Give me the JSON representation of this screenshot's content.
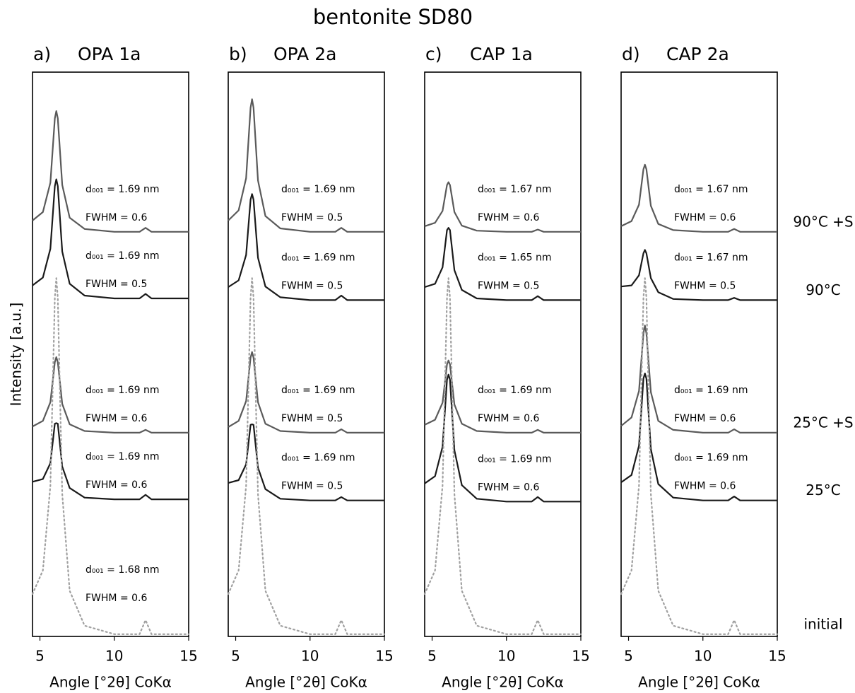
{
  "title": "bentonite SD80",
  "chart_data": [
    {
      "type": "line",
      "label": "a)",
      "title": "OPA 1a",
      "xlabel": "Angle [°2θ] CoKα",
      "ylabel": "Intensity [a.u.]",
      "x": [
        4.5,
        5.2,
        5.7,
        6.0,
        6.1,
        6.2,
        6.5,
        7.0,
        8.0,
        10,
        11.7,
        12.1,
        12.5,
        15
      ],
      "xlim": [
        4.5,
        15
      ],
      "xticks": [
        5,
        10,
        15
      ],
      "ylim": [
        0,
        100
      ],
      "series": [
        {
          "color": "#5a5a5a",
          "labels": [
            "d₀₀₁ = 1.69 nm",
            "FWHM = 0.6"
          ],
          "values": [
            73.7,
            75.2,
            80.4,
            91.8,
            93.1,
            91.8,
            80.0,
            74.2,
            72.2,
            71.7,
            71.7,
            72.4,
            71.7,
            71.7
          ]
        },
        {
          "color": "#1a1a1a",
          "labels": [
            "d₀₀₁ = 1.69 nm",
            "FWHM = 0.5"
          ],
          "values": [
            62.2,
            63.6,
            68.7,
            79.8,
            81.0,
            79.8,
            68.2,
            62.5,
            60.4,
            59.9,
            59.9,
            60.7,
            59.9,
            59.9
          ]
        },
        {
          "color": "#5a5a5a",
          "labels": [
            "d₀₀₁ = 1.69 nm",
            "FWHM = 0.6"
          ],
          "values": [
            37.2,
            38.2,
            41.5,
            48.6,
            49.5,
            48.6,
            41.2,
            37.6,
            36.4,
            36.1,
            36.1,
            36.6,
            36.1,
            36.1
          ]
        },
        {
          "color": "#1a1a1a",
          "labels": [
            "d₀₀₁ = 1.69 nm",
            "FWHM = 0.6"
          ],
          "values": [
            27.4,
            27.9,
            30.7,
            37.7,
            37.8,
            37.7,
            30.1,
            26.3,
            24.6,
            24.3,
            24.3,
            25.1,
            24.3,
            24.3
          ]
        },
        {
          "color": "#a0a0a0",
          "linestyle": "dotted",
          "labels": [
            "d₀₀₁ = 1.68 nm",
            "FWHM = 0.6"
          ],
          "values": [
            7.5,
            11.7,
            26.7,
            60.0,
            63.5,
            60.0,
            25.2,
            8.1,
            1.9,
            0.4,
            0.4,
            2.9,
            0.4,
            0.4
          ]
        }
      ]
    },
    {
      "type": "line",
      "label": "b)",
      "title": "OPA 2a",
      "xlabel": "Angle [°2θ] CoKα",
      "x": [
        4.5,
        5.2,
        5.7,
        6.0,
        6.1,
        6.2,
        6.5,
        7.0,
        8.0,
        10,
        11.7,
        12.1,
        12.5,
        15
      ],
      "xlim": [
        4.5,
        15
      ],
      "xticks": [
        5,
        10,
        15
      ],
      "ylim": [
        0,
        100
      ],
      "series": [
        {
          "color": "#5a5a5a",
          "labels": [
            "d₀₀₁ = 1.69 nm",
            "FWHM = 0.5"
          ],
          "values": [
            73.7,
            75.5,
            81.2,
            93.7,
            95.2,
            93.7,
            80.8,
            74.5,
            72.3,
            71.7,
            71.7,
            72.4,
            71.7,
            71.7
          ]
        },
        {
          "color": "#1a1a1a",
          "labels": [
            "d₀₀₁ = 1.69 nm",
            "FWHM = 0.5"
          ],
          "values": [
            61.9,
            63.1,
            67.6,
            77.4,
            78.4,
            77.4,
            67.1,
            62.0,
            60.1,
            59.6,
            59.6,
            60.4,
            59.6,
            59.6
          ]
        },
        {
          "color": "#5a5a5a",
          "labels": [
            "d₀₀₁ = 1.69 nm",
            "FWHM = 0.5"
          ],
          "values": [
            37.1,
            38.2,
            41.7,
            49.4,
            50.4,
            49.4,
            41.5,
            37.7,
            36.4,
            36.1,
            36.1,
            36.7,
            36.1,
            36.1
          ]
        },
        {
          "color": "#1a1a1a",
          "labels": [
            "d₀₀₁ = 1.69 nm",
            "FWHM = 0.5"
          ],
          "values": [
            27.2,
            27.7,
            30.5,
            37.5,
            37.6,
            37.5,
            29.9,
            26.1,
            24.4,
            24.1,
            24.1,
            24.7,
            24.1,
            24.1
          ]
        },
        {
          "color": "#a0a0a0",
          "linestyle": "dotted",
          "values": [
            7.5,
            11.7,
            26.7,
            60.0,
            63.5,
            60.0,
            25.2,
            8.1,
            1.9,
            0.4,
            0.4,
            2.9,
            0.4,
            0.4
          ]
        }
      ]
    },
    {
      "type": "line",
      "label": "c)",
      "title": "CAP 1a",
      "xlabel": "Angle [°2θ] CoKα",
      "x": [
        4.5,
        5.2,
        5.7,
        6.0,
        6.1,
        6.2,
        6.5,
        7.0,
        8.0,
        10,
        11.7,
        12.1,
        12.5,
        15
      ],
      "xlim": [
        4.5,
        15
      ],
      "xticks": [
        5,
        10,
        15
      ],
      "ylim": [
        0,
        100
      ],
      "series": [
        {
          "color": "#5a5a5a",
          "labels": [
            "d₀₀₁ = 1.67 nm",
            "FWHM = 0.6"
          ],
          "values": [
            72.7,
            73.3,
            75.4,
            80.0,
            80.5,
            80.0,
            75.2,
            72.8,
            71.9,
            71.7,
            71.7,
            72.1,
            71.7,
            71.7
          ]
        },
        {
          "color": "#1a1a1a",
          "labels": [
            "d₀₀₁ = 1.65 nm",
            "FWHM = 0.5"
          ],
          "values": [
            61.9,
            62.5,
            65.4,
            72.0,
            72.4,
            72.0,
            64.9,
            61.4,
            59.9,
            59.6,
            59.6,
            60.3,
            59.6,
            59.6
          ]
        },
        {
          "color": "#5a5a5a",
          "labels": [
            "d₀₀₁ = 1.69 nm",
            "FWHM = 0.6"
          ],
          "values": [
            37.5,
            38.4,
            41.4,
            48.2,
            48.9,
            48.2,
            41.1,
            37.7,
            36.4,
            36.1,
            36.1,
            36.6,
            36.1,
            36.1
          ]
        },
        {
          "color": "#1a1a1a",
          "labels": [
            "d₀₀₁ = 1.69 nm",
            "FWHM = 0.6"
          ],
          "values": [
            27.1,
            28.4,
            33.6,
            45.5,
            46.4,
            45.5,
            33.0,
            26.8,
            24.4,
            23.9,
            23.9,
            24.7,
            23.9,
            23.9
          ]
        },
        {
          "color": "#a0a0a0",
          "linestyle": "dotted",
          "values": [
            7.5,
            11.7,
            26.7,
            60.0,
            63.5,
            60.0,
            25.2,
            8.1,
            1.9,
            0.4,
            0.4,
            2.9,
            0.4,
            0.4
          ]
        }
      ]
    },
    {
      "type": "line",
      "label": "d)",
      "title": "CAP 2a",
      "xlabel": "Angle [°2θ] CoKα",
      "x": [
        4.5,
        5.2,
        5.7,
        6.0,
        6.1,
        6.2,
        6.5,
        7.0,
        8.0,
        10,
        11.7,
        12.1,
        12.5,
        15
      ],
      "xlim": [
        4.5,
        15
      ],
      "xticks": [
        5,
        10,
        15
      ],
      "ylim": [
        0,
        100
      ],
      "series": [
        {
          "name": "90°C +S",
          "color": "#5a5a5a",
          "labels": [
            "d₀₀₁ = 1.67 nm",
            "FWHM = 0.6"
          ],
          "values": [
            72.7,
            73.6,
            76.5,
            82.8,
            83.6,
            82.8,
            76.3,
            73.1,
            72.0,
            71.7,
            71.7,
            72.2,
            71.7,
            71.7
          ]
        },
        {
          "name": "90°C",
          "color": "#1a1a1a",
          "labels": [
            "d₀₀₁ = 1.67 nm",
            "FWHM = 0.5"
          ],
          "values": [
            62.0,
            62.2,
            64.0,
            67.9,
            68.5,
            67.9,
            63.5,
            61.0,
            59.8,
            59.6,
            59.6,
            60.0,
            59.6,
            59.6
          ]
        },
        {
          "name": "25°C +S",
          "color": "#5a5a5a",
          "labels": [
            "d₀₀₁ = 1.69 nm",
            "FWHM = 0.6"
          ],
          "values": [
            37.3,
            38.8,
            43.5,
            53.7,
            55.1,
            53.7,
            43.3,
            38.2,
            36.6,
            36.1,
            36.1,
            36.7,
            36.1,
            36.1
          ]
        },
        {
          "name": "25°C",
          "color": "#1a1a1a",
          "labels": [
            "d₀₀₁ = 1.69 nm",
            "FWHM = 0.6"
          ],
          "values": [
            27.3,
            28.6,
            33.8,
            45.7,
            46.6,
            45.7,
            33.2,
            27.0,
            24.6,
            24.1,
            24.1,
            24.8,
            24.1,
            24.1
          ]
        },
        {
          "name": "initial",
          "color": "#a0a0a0",
          "linestyle": "dotted",
          "values": [
            7.5,
            11.7,
            26.7,
            60.0,
            63.5,
            60.0,
            25.2,
            8.1,
            1.9,
            0.4,
            0.4,
            2.9,
            0.4,
            0.4
          ]
        }
      ]
    }
  ]
}
